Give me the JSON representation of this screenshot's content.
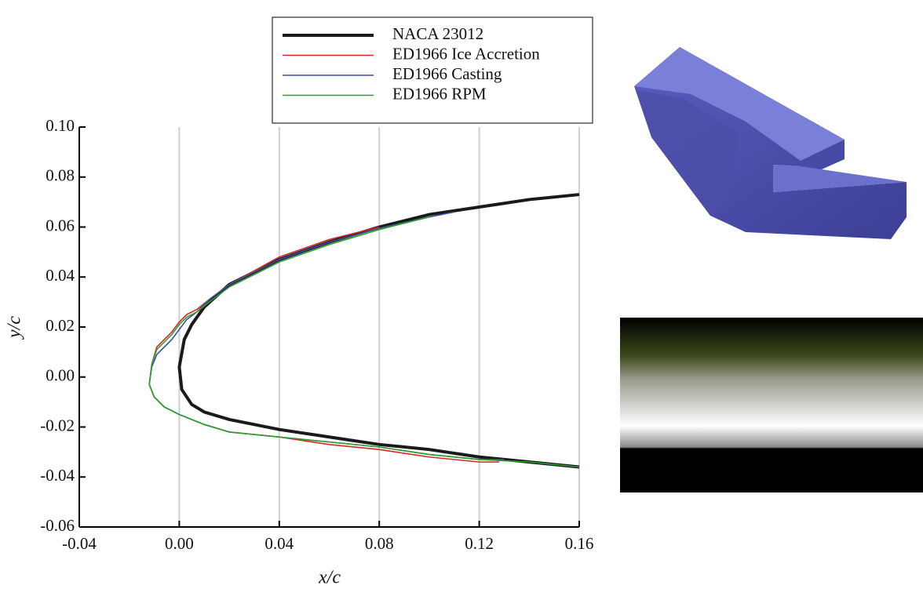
{
  "chart_data": {
    "type": "line",
    "xlabel": "x/c",
    "ylabel": "y/c",
    "xlim": [
      -0.04,
      0.16
    ],
    "ylim": [
      -0.06,
      0.1
    ],
    "xticks": [
      -0.04,
      {
        "value": 0,
        "label": "0.00"
      },
      0.04,
      0.08,
      0.12,
      0.16
    ],
    "yticks": [
      -0.06,
      -0.04,
      -0.02,
      {
        "value": 0,
        "label": "0.00"
      },
      0.02,
      0.04,
      0.06,
      0.08,
      {
        "value": 0.1,
        "label": "0.10"
      }
    ],
    "grid": "x",
    "series": [
      {
        "name": "NACA 23012",
        "color": "#1a1a1a",
        "x": [
          0.16,
          0.14,
          0.12,
          0.1,
          0.08,
          0.06,
          0.04,
          0.02,
          0.01,
          0.005,
          0.001,
          0.0,
          0.002,
          0.005,
          0.01,
          0.02,
          0.04,
          0.06,
          0.08,
          0.1,
          0.12,
          0.14,
          0.16
        ],
        "values": [
          -0.036,
          -0.034,
          -0.032,
          -0.029,
          -0.027,
          -0.024,
          -0.021,
          -0.017,
          -0.014,
          -0.011,
          -0.005,
          0.004,
          0.015,
          0.021,
          0.028,
          0.037,
          0.047,
          0.054,
          0.06,
          0.065,
          0.068,
          0.071,
          0.073
        ]
      },
      {
        "name": "ED1966 Ice Accretion",
        "color": "#d62728",
        "x": [
          0.128,
          0.12,
          0.1,
          0.08,
          0.06,
          0.04,
          0.02,
          0.01,
          0.0,
          -0.006,
          -0.01,
          -0.012,
          -0.011,
          -0.009,
          -0.006,
          -0.003,
          0.0,
          0.003,
          0.007,
          0.012,
          0.02,
          0.04,
          0.06,
          0.08
        ],
        "values": [
          -0.034,
          -0.034,
          -0.032,
          -0.029,
          -0.027,
          -0.024,
          -0.022,
          -0.019,
          -0.015,
          -0.012,
          -0.008,
          -0.003,
          0.005,
          0.012,
          0.015,
          0.018,
          0.022,
          0.025,
          0.027,
          0.031,
          0.037,
          0.048,
          0.055,
          0.06
        ]
      },
      {
        "name": "ED1966 Casting",
        "color": "#3a4fa8",
        "x": [
          0.13,
          0.12,
          0.1,
          0.08,
          0.06,
          0.04,
          0.02,
          0.01,
          0.0,
          -0.006,
          -0.01,
          -0.012,
          -0.011,
          -0.009,
          -0.006,
          -0.003,
          0.0,
          0.003,
          0.007,
          0.012,
          0.02,
          0.04,
          0.06,
          0.08,
          0.1,
          0.11
        ],
        "values": [
          -0.033,
          -0.033,
          -0.031,
          -0.028,
          -0.026,
          -0.024,
          -0.022,
          -0.019,
          -0.015,
          -0.012,
          -0.008,
          -0.003,
          0.004,
          0.009,
          0.012,
          0.015,
          0.019,
          0.023,
          0.026,
          0.031,
          0.037,
          0.047,
          0.054,
          0.0595,
          0.064,
          0.066
        ]
      },
      {
        "name": "ED1966 RPM",
        "color": "#2ca02c",
        "x": [
          0.16,
          0.14,
          0.12,
          0.1,
          0.08,
          0.06,
          0.04,
          0.02,
          0.01,
          0.0,
          -0.006,
          -0.01,
          -0.012,
          -0.011,
          -0.009,
          -0.006,
          -0.003,
          0.0,
          0.003,
          0.007,
          0.012,
          0.02,
          0.04,
          0.06,
          0.08,
          0.1
        ],
        "values": [
          -0.036,
          -0.034,
          -0.033,
          -0.031,
          -0.028,
          -0.026,
          -0.024,
          -0.022,
          -0.019,
          -0.015,
          -0.012,
          -0.008,
          -0.003,
          0.005,
          0.011,
          0.014,
          0.017,
          0.021,
          0.024,
          0.026,
          0.03,
          0.036,
          0.046,
          0.053,
          0.059,
          0.064
        ]
      }
    ]
  }
}
